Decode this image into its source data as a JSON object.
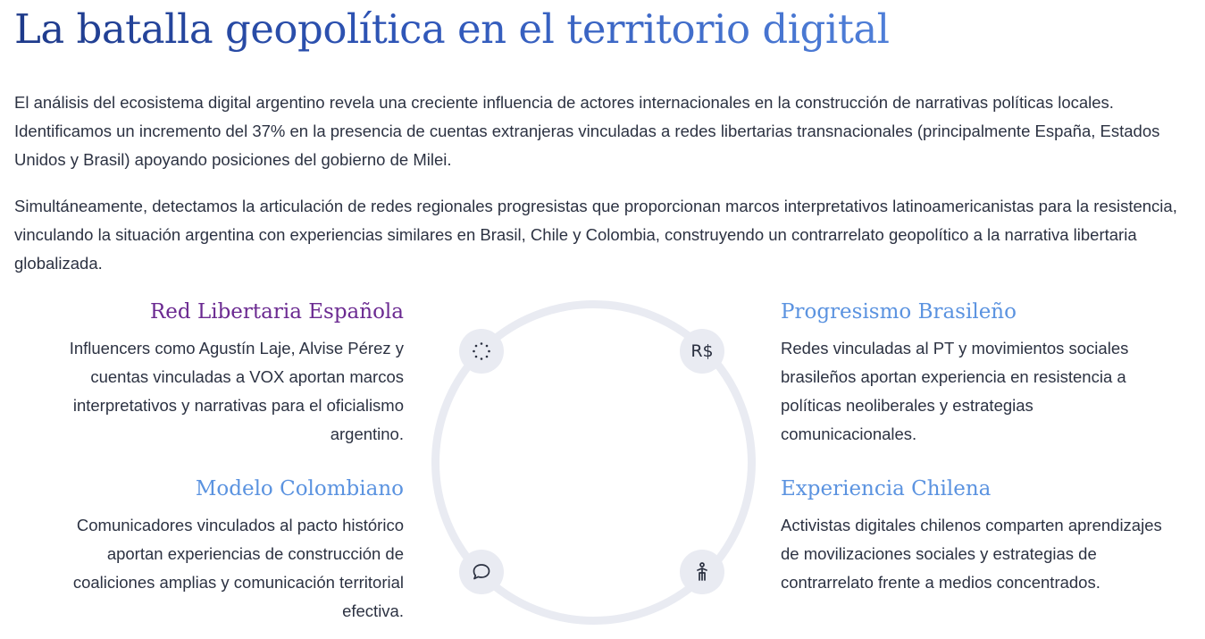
{
  "header": {
    "title": "La batalla geopolítica en el territorio digital"
  },
  "intro": {
    "paragraph_1": "El análisis del ecosistema digital argentino revela una creciente influencia de actores internacionales en la construcción de narrativas políticas locales. Identificamos un incremento del 37% en la presencia de cuentas extranjeras vinculadas a redes libertarias transnacionales (principalmente España, Estados Unidos y Brasil) apoyando posiciones del gobierno de Milei.",
    "paragraph_2": "Simultáneamente, detectamos la articulación de redes regionales progresistas que proporcionan marcos interpretativos latinoamericanistas para la resistencia, vinculando la situación argentina con experiencias similares en Brasil, Chile y Colombia, construyendo un contrarrelato geopolítico a la narrativa libertaria globalizada."
  },
  "cards": {
    "spain": {
      "title": "Red Libertaria Española",
      "text": "Influencers como Agustín Laje, Alvise Pérez y cuentas vinculadas a VOX aportan marcos interpretativos y narrativas para el oficialismo argentino.",
      "color": "#6b2a91"
    },
    "colombia": {
      "title": "Modelo Colombiano",
      "text": "Comunicadores vinculados al pacto histórico aportan experiencias de construcción de coaliciones amplias y comunicación territorial efectiva.",
      "color": "#5b93e0"
    },
    "brazil": {
      "title": "Progresismo Brasileño",
      "text": "Redes vinculadas al PT y movimientos sociales brasileños aportan experiencia en resistencia a políticas neoliberales y estrategias comunicacionales.",
      "color": "#5b93e0"
    },
    "chile": {
      "title": "Experiencia Chilena",
      "text": "Activistas digitales chilenos comparten aprendizajes de movilizaciones sociales y estrategias de contrarrelato frente a medios concentrados.",
      "color": "#5b93e0"
    }
  },
  "diagram": {
    "icons": [
      "loader-dots-icon",
      "currency-real-icon",
      "chat-bubble-icon",
      "person-icon"
    ],
    "currency_label": "R$",
    "ring_color": "#e9ebf2"
  }
}
